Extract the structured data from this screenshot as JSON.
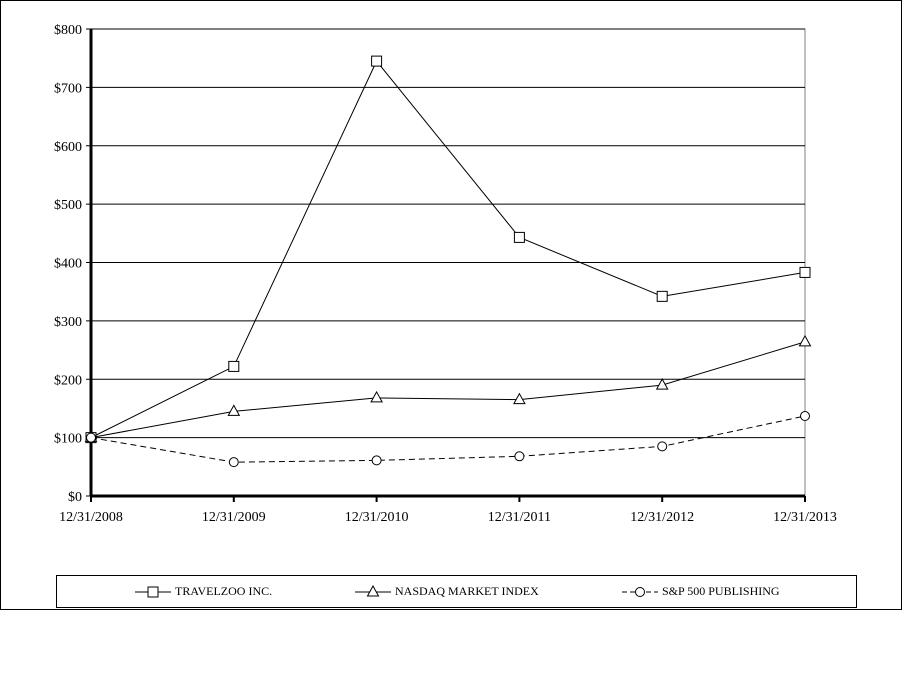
{
  "chart_data": {
    "type": "line",
    "categories": [
      "12/31/2008",
      "12/31/2009",
      "12/31/2010",
      "12/31/2011",
      "12/31/2012",
      "12/31/2013"
    ],
    "y_ticks": [
      "$0",
      "$100",
      "$200",
      "$300",
      "$400",
      "$500",
      "$600",
      "$700",
      "$800"
    ],
    "ylim": [
      0,
      800
    ],
    "grid": "horizontal",
    "legend_position": "bottom",
    "series": [
      {
        "name": "TRAVELZOO INC.",
        "values": [
          100,
          222,
          745,
          443,
          342,
          383
        ],
        "marker": "square",
        "dash": "solid"
      },
      {
        "name": "NASDAQ MARKET INDEX",
        "values": [
          100,
          145,
          168,
          165,
          190,
          264
        ],
        "marker": "triangle",
        "dash": "solid"
      },
      {
        "name": "S&P 500 PUBLISHING",
        "values": [
          100,
          58,
          61,
          68,
          85,
          137
        ],
        "marker": "circle",
        "dash": "dashed"
      }
    ]
  }
}
